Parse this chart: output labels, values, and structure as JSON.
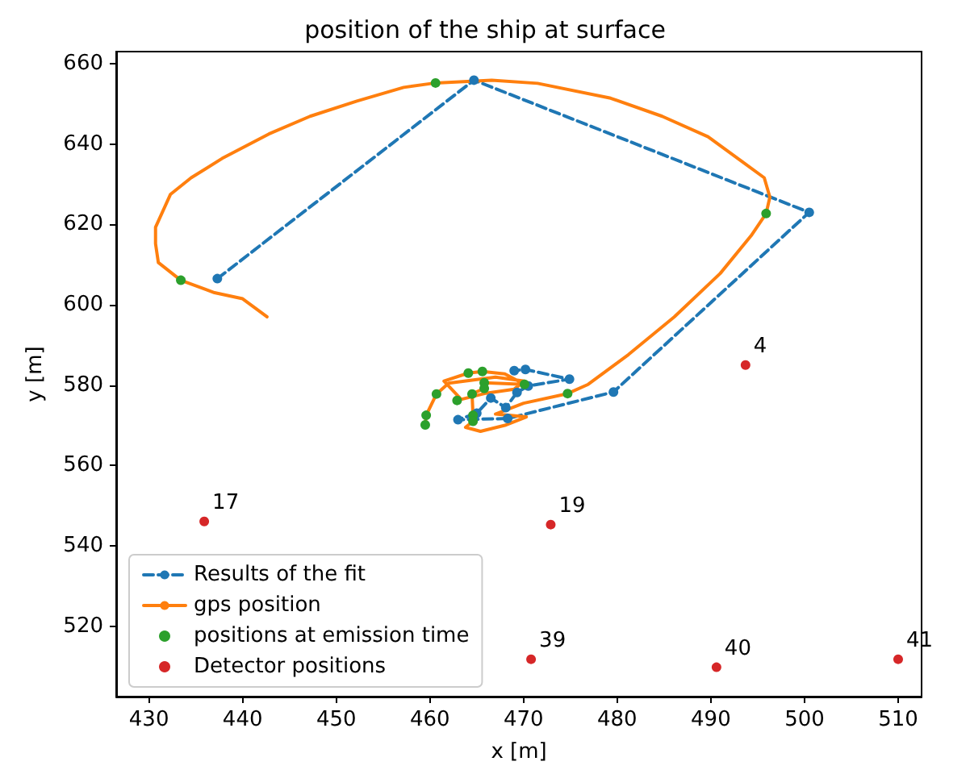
{
  "chart_data": {
    "type": "line",
    "title": "position of the ship at surface",
    "xlabel": "x [m]",
    "ylabel": "y [m]",
    "xlim": [
      426.5,
      512.5
    ],
    "xticks": [
      430,
      440,
      450,
      460,
      470,
      480,
      490,
      500,
      510
    ],
    "ylim": [
      502.5,
      663
    ],
    "yticks": [
      520,
      540,
      560,
      580,
      600,
      620,
      640,
      660
    ],
    "grid": false,
    "legend": "bottom left",
    "annotations": [
      {
        "text": "4",
        "x": 493.7,
        "y": 585.0
      },
      {
        "text": "17",
        "x": 435.9,
        "y": 546.1
      },
      {
        "text": "19",
        "x": 472.9,
        "y": 545.3
      },
      {
        "text": "39",
        "x": 470.8,
        "y": 511.8
      },
      {
        "text": "40",
        "x": 490.6,
        "y": 509.8
      },
      {
        "text": "41",
        "x": 510.0,
        "y": 511.8
      }
    ],
    "series": [
      {
        "name": "Results of the fit",
        "color": "#1f77b4",
        "line_style": "dashed",
        "marker": "circle",
        "x": [
          437.3,
          464.7,
          500.5,
          479.6,
          468.3,
          463.0,
          465.0,
          466.5,
          468.1,
          469.3,
          470.5,
          474.9,
          470.2,
          469.0
        ],
        "values": [
          606.5,
          655.9,
          623.0,
          578.3,
          571.7,
          571.4,
          573.0,
          576.8,
          574.4,
          578.2,
          579.8,
          581.5,
          583.9,
          583.6
        ]
      },
      {
        "name": "gps position",
        "color": "#ff7f0e",
        "line_style": "solid",
        "marker": "none",
        "x": [
          442.6,
          440,
          437,
          433.4,
          431,
          430.7,
          430.7,
          432.3,
          434.5,
          437.8,
          442.8,
          447.2,
          452.2,
          457.2,
          460.6,
          466.6,
          471.5,
          479.3,
          484.8,
          489.7,
          493.3,
          495.7,
          496.3,
          495.9,
          494.3,
          491.0,
          486.1,
          481.2,
          476.9,
          474.7,
          470.0,
          467.0,
          470.3,
          468.0,
          465.4,
          463.8,
          464.6,
          464.6,
          464.5,
          465.8,
          465.8,
          470.1,
          468.0,
          465.6,
          464.1,
          461.5,
          463.2,
          462.9,
          466.0,
          469.0,
          470.1,
          467.0,
          462.0,
          460.7,
          459.6,
          459.5
        ],
        "values": [
          597.0,
          601.5,
          603.0,
          606.1,
          610.5,
          615.2,
          619.3,
          627.5,
          631.6,
          636.4,
          642.5,
          646.9,
          650.7,
          654.1,
          655.2,
          655.9,
          655.1,
          651.4,
          646.9,
          641.8,
          635.7,
          631.6,
          626.8,
          622.7,
          617.2,
          607.8,
          597.0,
          587.6,
          580.2,
          577.9,
          575.5,
          572.8,
          572.1,
          570.0,
          568.5,
          569.5,
          571.0,
          572.5,
          577.8,
          579.2,
          580.6,
          580.2,
          582.8,
          583.4,
          583.0,
          581.0,
          576.8,
          576.2,
          578.0,
          579.0,
          581.0,
          582.0,
          580.5,
          577.8,
          572.5,
          570.1
        ]
      },
      {
        "name": "positions at emission time",
        "type": "scatter",
        "color": "#2ca02c",
        "marker": "circle",
        "x": [
          433.4,
          460.6,
          495.9,
          474.7,
          470.1,
          465.6,
          464.1,
          465.8,
          465.8,
          464.5,
          462.9,
          460.7,
          459.6,
          459.5,
          464.6,
          464.6
        ],
        "values": [
          606.1,
          655.2,
          622.7,
          577.9,
          580.2,
          583.4,
          583.0,
          580.6,
          579.2,
          577.8,
          576.2,
          577.8,
          572.5,
          570.1,
          572.5,
          571.0
        ]
      },
      {
        "name": "Detector positions",
        "type": "scatter",
        "color": "#d62728",
        "marker": "circle",
        "x": [
          493.7,
          435.9,
          472.9,
          470.8,
          490.6,
          510.0
        ],
        "values": [
          585.0,
          546.1,
          545.3,
          511.8,
          509.8,
          511.8
        ]
      }
    ]
  }
}
